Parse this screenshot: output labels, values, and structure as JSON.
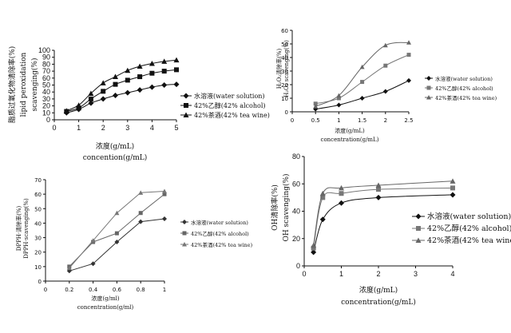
{
  "chart_data": [
    {
      "type": "line",
      "ylabel_lines": [
        "脂质过氧化物清除率(%)",
        "lipid peroxidation",
        "scavenging(%)"
      ],
      "xlabel_lines": [
        "浓度(g/mL)",
        "concention(g/mL)"
      ],
      "x": [
        0.5,
        1,
        1.5,
        2,
        2.5,
        3,
        3.5,
        4,
        4.5,
        5
      ],
      "xticks": [
        "0",
        "1",
        "2",
        "3",
        "4",
        "5"
      ],
      "yticks": [
        "0",
        "10",
        "20",
        "30",
        "40",
        "50",
        "60",
        "70",
        "80",
        "90",
        "100"
      ],
      "xlim": [
        0,
        5
      ],
      "ylim": [
        0,
        100
      ],
      "series": [
        {
          "name": "水溶液(water solution)",
          "marker": "diamond",
          "color": "#111111",
          "values": [
            10,
            15,
            24,
            30,
            35,
            39,
            43,
            47,
            50,
            51
          ]
        },
        {
          "name": "42%乙醇(42% alcohol)",
          "marker": "square",
          "color": "#111111",
          "values": [
            12,
            17,
            30,
            41,
            51,
            57,
            62,
            67,
            70,
            72
          ]
        },
        {
          "name": "42%茶酒(42% tea wine)",
          "marker": "triangle",
          "color": "#111111",
          "values": [
            13,
            21,
            38,
            53,
            62,
            71,
            77,
            81,
            84,
            86
          ]
        }
      ],
      "legend": "right"
    },
    {
      "type": "line",
      "ylabel_lines": [
        "H₂O₂清除率(%)",
        "H₂O₂ scavenging(%)"
      ],
      "xlabel_lines": [
        "浓度(g/mL)",
        "concentration(g/mL)"
      ],
      "x": [
        0.5,
        1,
        1.5,
        2,
        2.5
      ],
      "xticks": [
        "0",
        "0.5",
        "1",
        "1.5",
        "2",
        "2.5"
      ],
      "yticks": [
        "0",
        "10",
        "20",
        "30",
        "40",
        "50",
        "60"
      ],
      "xlim": [
        0,
        2.5
      ],
      "ylim": [
        0,
        60
      ],
      "series": [
        {
          "name": "水溶液(water solution)",
          "marker": "diamond",
          "color": "#111111",
          "values": [
            2,
            5,
            10,
            15,
            23
          ]
        },
        {
          "name": "42%乙醇(42% alcohol)",
          "marker": "square",
          "color": "#777777",
          "values": [
            6,
            10,
            22,
            34,
            42
          ]
        },
        {
          "name": "42%茶酒(42% tea wine)",
          "marker": "triangle",
          "color": "#666666",
          "values": [
            4,
            12,
            33,
            49,
            51
          ]
        }
      ],
      "legend": "right"
    },
    {
      "type": "line",
      "ylabel_lines": [
        "DPPH·清除率(%)",
        "DPPH·scavenging(%)"
      ],
      "xlabel_lines": [
        "浓度(g/ml)",
        "concentration(g/ml)"
      ],
      "x": [
        0.2,
        0.4,
        0.6,
        0.8,
        1
      ],
      "xticks": [
        "0",
        "0.2",
        "0.4",
        "0.6",
        "0.8",
        "1"
      ],
      "yticks": [
        "0",
        "10",
        "20",
        "30",
        "40",
        "50",
        "60",
        "70"
      ],
      "xlim": [
        0,
        1
      ],
      "ylim": [
        0,
        70
      ],
      "series": [
        {
          "name": "水溶液(water solution)",
          "marker": "diamond",
          "color": "#333333",
          "values": [
            7,
            12,
            27,
            41,
            43
          ]
        },
        {
          "name": "42%乙醇(42% alcohol)",
          "marker": "square",
          "color": "#666666",
          "values": [
            10,
            27,
            33,
            47,
            60
          ]
        },
        {
          "name": "42%茶酒(42% tea wine)",
          "marker": "triangle",
          "color": "#777777",
          "values": [
            9,
            28,
            47,
            61,
            62
          ]
        }
      ],
      "legend": "right"
    },
    {
      "type": "line",
      "ylabel_lines": [
        "OH清除率(%)",
        "OH scavenging(%)"
      ],
      "xlabel_lines": [
        "浓度(g/mL)",
        "concentration(g/mL)"
      ],
      "x": [
        0.25,
        0.5,
        1,
        2,
        4
      ],
      "xticks": [
        "0",
        "1",
        "2",
        "3",
        "4"
      ],
      "yticks": [
        "0",
        "20",
        "40",
        "60",
        "80"
      ],
      "xlim": [
        0,
        4
      ],
      "ylim": [
        0,
        80
      ],
      "series": [
        {
          "name": "水溶液(water solution)",
          "marker": "diamond",
          "color": "#111111",
          "values": [
            10,
            34,
            46,
            50,
            52
          ]
        },
        {
          "name": "42%乙醇(42% alcohol)",
          "marker": "square",
          "color": "#777777",
          "values": [
            13,
            50,
            53,
            56,
            57
          ]
        },
        {
          "name": "42%茶酒(42% tea wine)",
          "marker": "triangle",
          "color": "#666666",
          "values": [
            15,
            53,
            57,
            59,
            62
          ]
        }
      ],
      "legend": "right"
    }
  ]
}
